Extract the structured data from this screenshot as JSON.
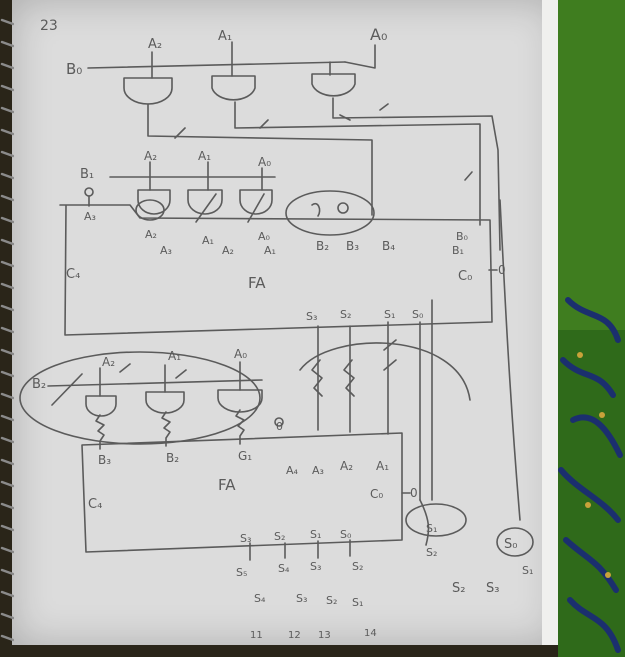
{
  "photo": {
    "colors": {
      "paper": "#dcdcdc",
      "pencil": "#5b5b5b",
      "cloth_green": "#3f7d1f",
      "cloth_blue": "#1b2f6e",
      "background": "#2a2519"
    }
  },
  "sketch_labels": {
    "page_number": "23",
    "top_row": {
      "b": "B₀",
      "a2": "A₂",
      "a1": "A₁",
      "a0": "A₀"
    },
    "middle_row": {
      "b": "B₁",
      "b1_note": "B₁",
      "a2": "A₂",
      "a1": "A₁",
      "a0": "A₀",
      "p_a3": "A₃",
      "in_a2": "A₂",
      "in_a3": "A₃",
      "in_a1": "A₁",
      "in_a2b": "A₂",
      "in_a0": "A₀",
      "in_a1b": "A₁",
      "in_b2": "B₂",
      "in_b3": "B₃",
      "in_b4": "B₄",
      "in_b1": "B₁",
      "in_b0": "B₀",
      "fa": "FA",
      "c4": "C₄",
      "c0": "C₀",
      "zero": "0",
      "out_s3": "S₃",
      "out_s2": "S₂",
      "out_s1": "S₁",
      "out_s0": "S₀"
    },
    "bottom_row": {
      "b": "B₂",
      "a2": "A₂",
      "a1": "A₁",
      "a0": "A₀",
      "in_b3": "B₃",
      "in_b2": "B₂",
      "in_g1": "G₁",
      "zero": "0",
      "in_a4": "A₄",
      "in_a3": "A₃",
      "in_a2": "A₂",
      "in_a1": "A₁",
      "fa": "FA",
      "c4": "C₄",
      "c0": "C₀",
      "zero2": "0",
      "out_s3": "S₃",
      "out_s2": "S₂",
      "out_s1": "S₁",
      "out_s0": "S₀",
      "res_s5": "S₅",
      "res_s4": "S₄",
      "res_s3": "S₃",
      "res_s2": "S₂",
      "side_s1": "S₁",
      "side_s2": "S₂",
      "side_s0": "S₀",
      "side_s1b": "S₁"
    },
    "totals": {
      "s_labels": [
        "S₄",
        "S₃",
        "S₂",
        "S₁"
      ],
      "numbers": [
        "11",
        "12",
        "13",
        "14"
      ],
      "corner": [
        "S₂",
        "S₃"
      ]
    }
  }
}
